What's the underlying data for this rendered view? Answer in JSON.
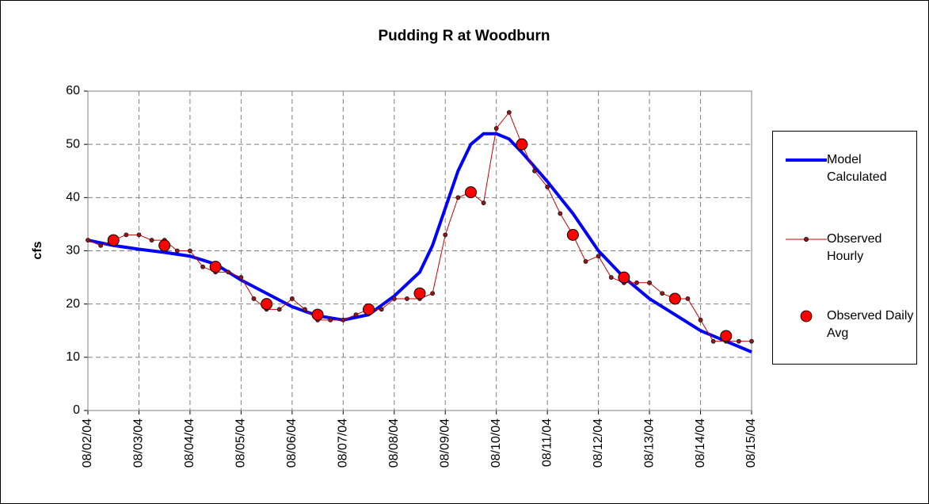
{
  "chart_data": {
    "type": "line",
    "title": "Pudding R at Woodburn",
    "y_label": "cfs",
    "xlim": [
      0,
      13
    ],
    "xticks": [
      {
        "value": 0,
        "label": "08/02/04"
      },
      {
        "value": 1,
        "label": "08/03/04"
      },
      {
        "value": 2,
        "label": "08/04/04"
      },
      {
        "value": 3,
        "label": "08/05/04"
      },
      {
        "value": 4,
        "label": "08/06/04"
      },
      {
        "value": 5,
        "label": "08/07/04"
      },
      {
        "value": 6,
        "label": "08/08/04"
      },
      {
        "value": 7,
        "label": "08/09/04"
      },
      {
        "value": 8,
        "label": "08/10/04"
      },
      {
        "value": 9,
        "label": "08/11/04"
      },
      {
        "value": 10,
        "label": "08/12/04"
      },
      {
        "value": 11,
        "label": "08/13/04"
      },
      {
        "value": 12,
        "label": "08/14/04"
      },
      {
        "value": 13,
        "label": "08/15/04"
      }
    ],
    "ylim": [
      0,
      60
    ],
    "yticks": [
      0,
      10,
      20,
      30,
      40,
      50,
      60
    ],
    "grid": true,
    "legend": "right",
    "series": [
      {
        "name": "Model Calculated",
        "color": "#0000ff",
        "style": "line",
        "x": [
          0,
          0.5,
          1,
          1.5,
          2,
          2.5,
          3,
          3.5,
          4,
          4.5,
          5,
          5.5,
          6,
          6.5,
          6.75,
          7,
          7.25,
          7.5,
          7.75,
          8,
          8.25,
          8.5,
          9,
          9.5,
          10,
          10.5,
          11,
          11.5,
          12,
          12.5,
          13
        ],
        "values": [
          32,
          31,
          30.3,
          29.7,
          29,
          27.5,
          24.5,
          22,
          19.5,
          17.8,
          17,
          18,
          21.5,
          26,
          31,
          38,
          45,
          50,
          52,
          52,
          51,
          48.5,
          43,
          37,
          30,
          25,
          21,
          18,
          15,
          13,
          11
        ]
      },
      {
        "name": "Observed Hourly",
        "color": "#cc0000",
        "marker_color": "#8b1a1a",
        "style": "line-markers",
        "x": [
          0,
          0.25,
          0.5,
          0.75,
          1,
          1.25,
          1.5,
          1.75,
          2,
          2.25,
          2.5,
          2.75,
          3,
          3.25,
          3.5,
          3.75,
          4,
          4.25,
          4.5,
          4.75,
          5,
          5.25,
          5.5,
          5.75,
          6,
          6.25,
          6.5,
          6.75,
          7,
          7.25,
          7.5,
          7.75,
          8,
          8.25,
          8.5,
          8.75,
          9,
          9.25,
          9.5,
          9.75,
          10,
          10.25,
          10.5,
          10.75,
          11,
          11.25,
          11.5,
          11.75,
          12,
          12.25,
          12.5,
          12.75,
          13
        ],
        "values": [
          32,
          31,
          32,
          33,
          33,
          32,
          32,
          30,
          30,
          27,
          26,
          26,
          25,
          21,
          19,
          19,
          21,
          19,
          17,
          17,
          17,
          18,
          19,
          19,
          21,
          21,
          21,
          22,
          33,
          40,
          41,
          39,
          53,
          56,
          50,
          45,
          42,
          37,
          33,
          28,
          29,
          25,
          24,
          24,
          24,
          22,
          21,
          21,
          17,
          13,
          13,
          13,
          13
        ]
      },
      {
        "name": "Observed Daily Avg",
        "color": "#ff0000",
        "style": "markers",
        "x": [
          0.5,
          1.5,
          2.5,
          3.5,
          4.5,
          5.5,
          6.5,
          7.5,
          8.5,
          9.5,
          10.5,
          11.5,
          12.5
        ],
        "values": [
          32,
          31,
          27,
          20,
          18,
          19,
          22,
          41,
          50,
          33,
          25,
          21,
          14
        ]
      }
    ]
  }
}
